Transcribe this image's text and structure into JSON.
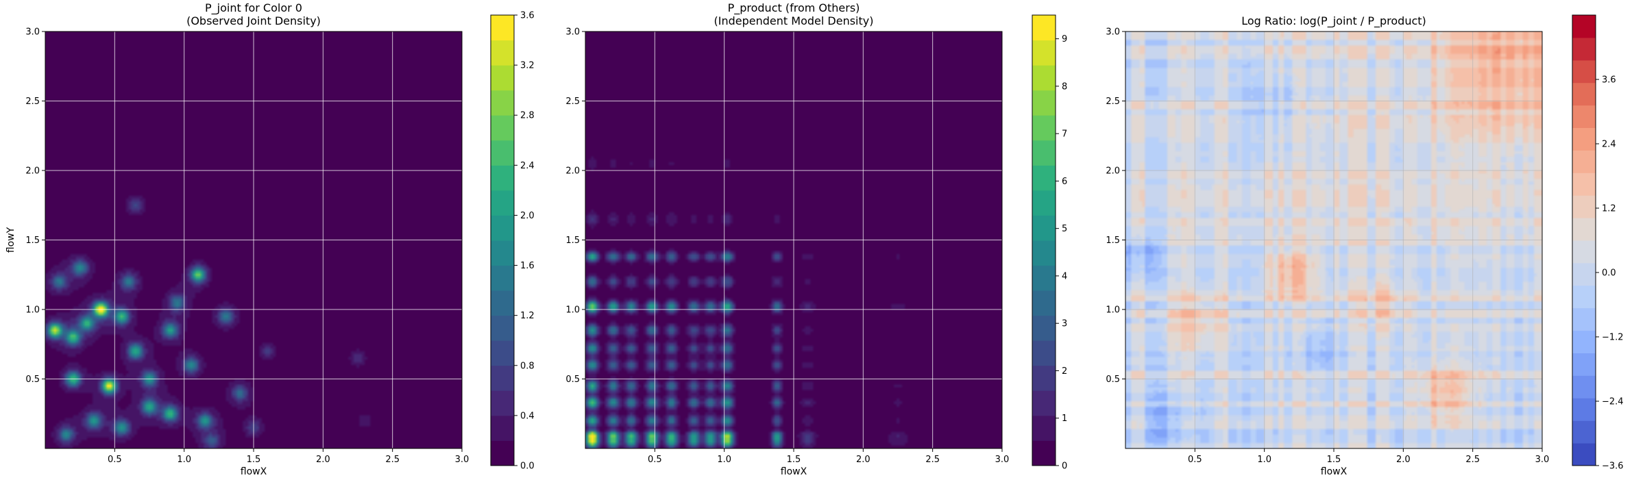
{
  "chart_data": [
    {
      "type": "heatmap",
      "title": "P_joint for Color 0",
      "subtitle": "(Observed Joint Density)",
      "xlabel": "flowX",
      "ylabel": "flowY",
      "xlim": [
        0.0,
        3.0
      ],
      "ylim": [
        0.0,
        3.0
      ],
      "x_ticks": [
        "0.5",
        "1.0",
        "1.5",
        "2.0",
        "2.5",
        "3.0"
      ],
      "y_ticks": [
        "0.5",
        "1.0",
        "1.5",
        "2.0",
        "2.5",
        "3.0"
      ],
      "colormap": "viridis",
      "colorbar_range": [
        0.0,
        3.6
      ],
      "colorbar_ticks": [
        "0.0",
        "0.4",
        "0.8",
        "1.2",
        "1.6",
        "2.0",
        "2.4",
        "2.8",
        "3.2",
        "3.6"
      ],
      "grid": true,
      "peaks": [
        {
          "x": 0.4,
          "y": 1.0,
          "v": 3.5
        },
        {
          "x": 0.46,
          "y": 0.45,
          "v": 3.2
        },
        {
          "x": 0.07,
          "y": 0.85,
          "v": 2.8
        },
        {
          "x": 0.2,
          "y": 0.5,
          "v": 2.2
        },
        {
          "x": 0.2,
          "y": 0.8,
          "v": 2.0
        },
        {
          "x": 0.55,
          "y": 0.95,
          "v": 2.0
        },
        {
          "x": 0.3,
          "y": 0.9,
          "v": 1.8
        },
        {
          "x": 0.65,
          "y": 0.7,
          "v": 1.9
        },
        {
          "x": 0.75,
          "y": 0.5,
          "v": 1.6
        },
        {
          "x": 0.9,
          "y": 0.85,
          "v": 1.7
        },
        {
          "x": 1.1,
          "y": 1.25,
          "v": 2.4
        },
        {
          "x": 0.9,
          "y": 0.25,
          "v": 2.0
        },
        {
          "x": 0.75,
          "y": 0.3,
          "v": 1.8
        },
        {
          "x": 1.15,
          "y": 0.2,
          "v": 1.5
        },
        {
          "x": 0.35,
          "y": 0.2,
          "v": 1.6
        },
        {
          "x": 0.15,
          "y": 0.1,
          "v": 1.3
        },
        {
          "x": 0.25,
          "y": 1.3,
          "v": 1.4
        },
        {
          "x": 0.6,
          "y": 1.2,
          "v": 1.2
        },
        {
          "x": 1.05,
          "y": 0.6,
          "v": 1.4
        },
        {
          "x": 1.3,
          "y": 0.95,
          "v": 1.2
        },
        {
          "x": 1.4,
          "y": 0.4,
          "v": 1.0
        },
        {
          "x": 0.55,
          "y": 0.15,
          "v": 1.6
        },
        {
          "x": 0.95,
          "y": 1.05,
          "v": 1.2
        },
        {
          "x": 0.65,
          "y": 1.75,
          "v": 0.6
        },
        {
          "x": 0.1,
          "y": 1.2,
          "v": 1.1
        },
        {
          "x": 1.6,
          "y": 0.7,
          "v": 0.5
        },
        {
          "x": 2.25,
          "y": 0.65,
          "v": 0.4
        },
        {
          "x": 2.3,
          "y": 0.2,
          "v": 0.3
        },
        {
          "x": 1.2,
          "y": 0.05,
          "v": 0.8
        },
        {
          "x": 1.5,
          "y": 0.15,
          "v": 0.6
        }
      ]
    },
    {
      "type": "heatmap",
      "title": "P_product (from Others)",
      "subtitle": "(Independent Model Density)",
      "xlabel": "flowX",
      "ylabel": "",
      "xlim": [
        0.0,
        3.0
      ],
      "ylim": [
        0.0,
        3.0
      ],
      "x_ticks": [
        "0.5",
        "1.0",
        "1.5",
        "2.0",
        "2.5",
        "3.0"
      ],
      "y_ticks": [
        "0.5",
        "1.0",
        "1.5",
        "2.0",
        "2.5",
        "3.0"
      ],
      "colormap": "viridis",
      "colorbar_range": [
        0,
        9.5
      ],
      "colorbar_ticks": [
        "0",
        "1",
        "2",
        "3",
        "4",
        "5",
        "6",
        "7",
        "8",
        "9"
      ],
      "grid": true,
      "marginal_x": [
        {
          "c": 0.05,
          "w": 0.03,
          "a": 1.0
        },
        {
          "c": 0.2,
          "w": 0.03,
          "a": 0.7
        },
        {
          "c": 0.33,
          "w": 0.03,
          "a": 0.6
        },
        {
          "c": 0.48,
          "w": 0.03,
          "a": 0.7
        },
        {
          "c": 0.62,
          "w": 0.03,
          "a": 0.6
        },
        {
          "c": 0.78,
          "w": 0.03,
          "a": 0.5
        },
        {
          "c": 0.9,
          "w": 0.03,
          "a": 0.5
        },
        {
          "c": 1.02,
          "w": 0.03,
          "a": 0.8
        },
        {
          "c": 1.38,
          "w": 0.025,
          "a": 0.5
        },
        {
          "c": 1.6,
          "w": 0.04,
          "a": 0.15
        },
        {
          "c": 2.25,
          "w": 0.05,
          "a": 0.08
        }
      ],
      "marginal_y": [
        {
          "c": 0.05,
          "w": 0.03,
          "a": 1.0
        },
        {
          "c": 0.1,
          "w": 0.02,
          "a": 0.8
        },
        {
          "c": 0.2,
          "w": 0.03,
          "a": 0.6
        },
        {
          "c": 0.33,
          "w": 0.03,
          "a": 0.7
        },
        {
          "c": 0.45,
          "w": 0.03,
          "a": 0.6
        },
        {
          "c": 0.6,
          "w": 0.03,
          "a": 0.5
        },
        {
          "c": 0.72,
          "w": 0.03,
          "a": 0.5
        },
        {
          "c": 0.85,
          "w": 0.03,
          "a": 0.5
        },
        {
          "c": 1.02,
          "w": 0.03,
          "a": 0.8
        },
        {
          "c": 1.2,
          "w": 0.03,
          "a": 0.35
        },
        {
          "c": 1.38,
          "w": 0.025,
          "a": 0.6
        },
        {
          "c": 1.65,
          "w": 0.04,
          "a": 0.15
        },
        {
          "c": 2.05,
          "w": 0.04,
          "a": 0.08
        }
      ]
    },
    {
      "type": "heatmap",
      "title": "Log Ratio: log(P_joint / P_product)",
      "xlabel": "flowX",
      "ylabel": "",
      "xlim": [
        0.0,
        3.0
      ],
      "ylim": [
        0.0,
        3.0
      ],
      "x_ticks": [
        "0.5",
        "1.0",
        "1.5",
        "2.0",
        "2.5",
        "3.0"
      ],
      "y_ticks": [
        "0.5",
        "1.0",
        "1.5",
        "2.0",
        "2.5",
        "3.0"
      ],
      "colormap": "coolwarm",
      "colorbar_range": [
        -3.6,
        4.8
      ],
      "colorbar_ticks": [
        "−3.6",
        "−2.4",
        "−1.2",
        "0.0",
        "1.2",
        "2.4",
        "3.6"
      ],
      "grid": true,
      "hotspots": [
        {
          "x": 2.75,
          "y": 2.75,
          "v": 1.6,
          "s": 0.35
        },
        {
          "x": 1.2,
          "y": 1.25,
          "v": 1.8,
          "s": 0.12
        },
        {
          "x": 2.3,
          "y": 0.4,
          "v": 1.6,
          "s": 0.15
        },
        {
          "x": 0.5,
          "y": 0.9,
          "v": 1.2,
          "s": 0.15
        },
        {
          "x": 1.85,
          "y": 1.05,
          "v": 1.0,
          "s": 0.12
        },
        {
          "x": 0.3,
          "y": 0.2,
          "v": -1.2,
          "s": 0.12
        },
        {
          "x": 0.1,
          "y": 1.4,
          "v": -1.3,
          "s": 0.1
        },
        {
          "x": 1.05,
          "y": 2.45,
          "v": -0.8,
          "s": 0.15
        },
        {
          "x": 1.4,
          "y": 0.7,
          "v": -0.9,
          "s": 0.12
        }
      ]
    }
  ]
}
